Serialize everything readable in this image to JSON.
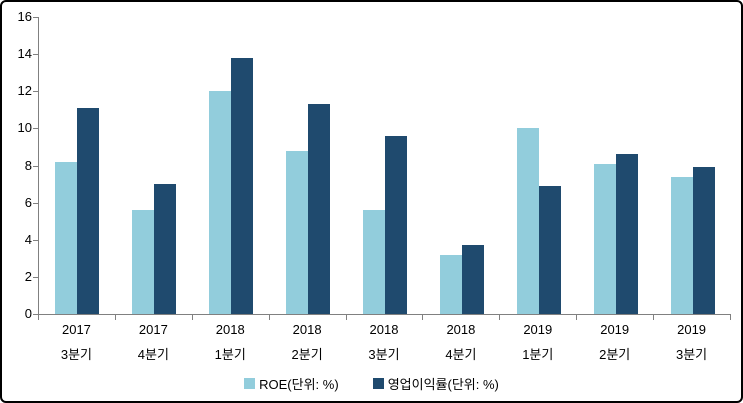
{
  "chart_data": {
    "type": "bar",
    "title": "",
    "xlabel": "",
    "ylabel": "",
    "categories": [
      "2017 3분기",
      "2017 4분기",
      "2018 1분기",
      "2018 2분기",
      "2018 3분기",
      "2018 4분기",
      "2019 1분기",
      "2019 2분기",
      "2019 3분기"
    ],
    "series": [
      {
        "name": "ROE(단위: %)",
        "color": "#92CDDC",
        "values": [
          8.2,
          5.6,
          12.0,
          8.8,
          5.6,
          3.2,
          10.0,
          8.1,
          7.4
        ]
      },
      {
        "name": "영업이익률(단위: %)",
        "color": "#1F4A6E",
        "values": [
          11.1,
          7.0,
          13.8,
          11.3,
          9.6,
          3.7,
          6.9,
          8.6,
          7.9
        ]
      }
    ],
    "ylim": [
      0,
      16
    ],
    "ytick_step": 2,
    "ytick_labels": [
      "0",
      "2",
      "4",
      "6",
      "8",
      "10",
      "12",
      "14",
      "16"
    ],
    "grid": false,
    "legend_position": "bottom"
  },
  "colors": {
    "axis": "#808080",
    "text": "#000000",
    "background": "#FFFFFF",
    "frame_border": "#000000",
    "series_light": "#92CDDC",
    "series_dark": "#1F4A6E"
  }
}
